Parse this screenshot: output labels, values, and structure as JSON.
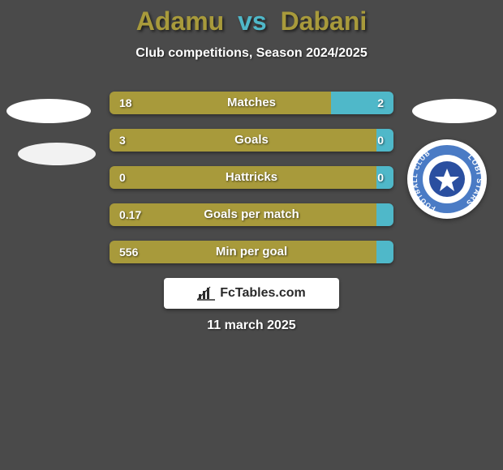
{
  "title": {
    "player1": "Adamu",
    "vs": "vs",
    "player2": "Dabani",
    "player1_color": "#a89a3b",
    "vs_color": "#4fb8c9",
    "player2_color": "#a89a3b"
  },
  "subtitle": "Club competitions, Season 2024/2025",
  "colors": {
    "background": "#4a4a4a",
    "bar_left": "#a89a3b",
    "bar_right": "#4fb8c9",
    "text": "#ffffff",
    "badge_bg": "#ffffff",
    "badge_text": "#2a2a2a",
    "club_ring": "#4a7bc5",
    "club_inner": "#ffffff",
    "club_ball": "#2a4fa0"
  },
  "stats": [
    {
      "label": "Matches",
      "left_val": "18",
      "right_val": "2",
      "left_pct": 78,
      "right_pct": 22
    },
    {
      "label": "Goals",
      "left_val": "3",
      "right_val": "0",
      "left_pct": 94,
      "right_pct": 6
    },
    {
      "label": "Hattricks",
      "left_val": "0",
      "right_val": "0",
      "left_pct": 94,
      "right_pct": 6
    },
    {
      "label": "Goals per match",
      "left_val": "0.17",
      "right_val": "",
      "left_pct": 94,
      "right_pct": 6
    },
    {
      "label": "Min per goal",
      "left_val": "556",
      "right_val": "",
      "left_pct": 94,
      "right_pct": 6
    }
  ],
  "badge": {
    "text": "FcTables.com",
    "icon": "bar-chart-icon"
  },
  "date": "11 march 2025",
  "club_badge_text": "LOBI STARS"
}
